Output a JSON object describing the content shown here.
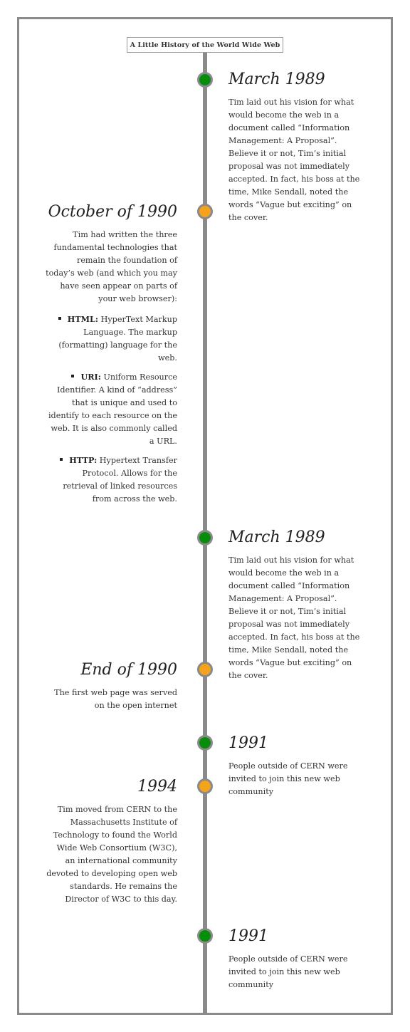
{
  "title": "A Little History of the World Wide Web",
  "events": [
    {
      "date": "March 1989",
      "text": "Tim laid out his vision for what would become the web in a document called “Information Management: A Proposal”. Believe it or not, Tim’s initial proposal was not immediately accepted. In fact, his boss at the time, Mike Sendall, noted the words “Vague but exciting” on the cover.",
      "color": "#078d0c"
    },
    {
      "date": "October of 1990",
      "text": "Tim had written the three fundamental technologies that remain the foundation of today’s web (and which you may have seen appear on parts of your web browser):",
      "color": "#f5a21c",
      "items": [
        {
          "term": "HTML:",
          "desc": "HyperText Markup Language. The markup (formatting) language for the web."
        },
        {
          "term": "URI:",
          "desc": "Uniform Resource Identifier. A kind of “address” that is unique and used to identify to each resource on the web. It is also commonly called a URL."
        },
        {
          "term": "HTTP:",
          "desc": "Hypertext Transfer Protocol. Allows for the retrieval of linked resources from across the web."
        }
      ]
    },
    {
      "date": "March 1989",
      "text": "Tim laid out his vision for what would become the web in a document called “Information Management: A Proposal”. Believe it or not, Tim’s initial proposal was not immediately accepted. In fact, his boss at the time, Mike Sendall, noted the words “Vague but exciting” on the cover.",
      "color": "#078d0c"
    },
    {
      "date": "End of 1990",
      "text": "The first web page was served on the open internet",
      "color": "#f5a21c"
    },
    {
      "date": "1991",
      "text": "People outside of CERN were invited to join this new web community",
      "color": "#078d0c"
    },
    {
      "date": "1994",
      "text": "Tim moved from CERN to the Massachusetts Institute of Technology to found the World Wide Web Consortium (W3C), an international community devoted to developing open web standards. He remains the Director of W3C to this day.",
      "color": "#f5a21c"
    },
    {
      "date": "1991",
      "text": "People outside of CERN were invited to join this new web community",
      "color": "#078d0c"
    }
  ]
}
